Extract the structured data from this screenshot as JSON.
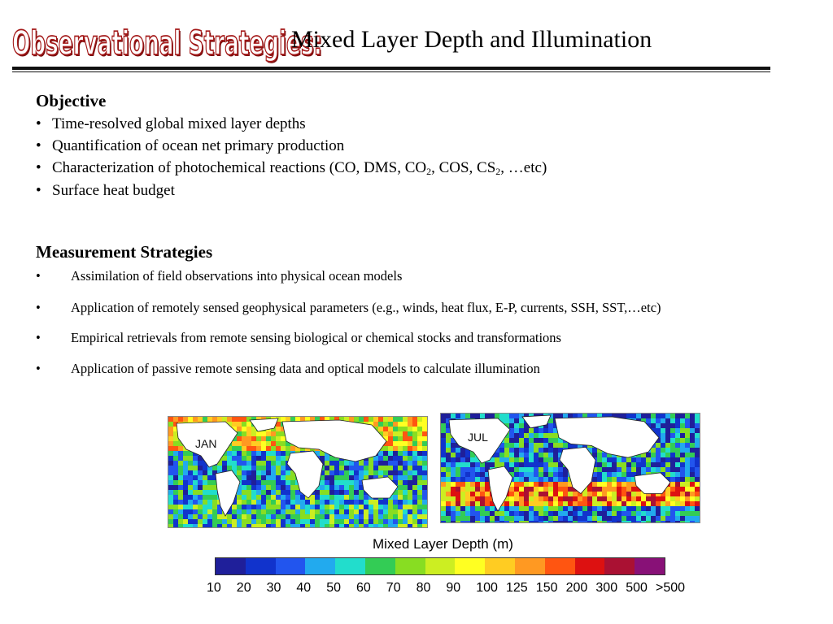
{
  "title": {
    "prefix": "Observational Strategies:",
    "main": "Mixed Layer Depth and Illumination"
  },
  "objective": {
    "heading": "Objective",
    "items": [
      {
        "parts": [
          "Time-resolved global mixed layer depths"
        ]
      },
      {
        "parts": [
          "Quantification of ocean net primary production"
        ]
      },
      {
        "parts": [
          "Characterization of photochemical reactions (CO, DMS, CO",
          "2",
          ", COS, CS",
          "2",
          ", …etc)"
        ]
      },
      {
        "parts": [
          "Surface heat budget"
        ]
      }
    ]
  },
  "measurement": {
    "heading": "Measurement Strategies",
    "items": [
      "Assimilation of field observations into physical ocean models",
      "Application of remotely sensed geophysical parameters (e.g., winds, heat flux, E-P, currents, SSH, SST,…etc)",
      "Empirical retrievals from remote sensing biological or chemical stocks and transformations",
      "Application of passive remote sensing data and optical models to calculate illumination"
    ]
  },
  "bullet_char": "•",
  "figure": {
    "maps": [
      {
        "label": "JAN"
      },
      {
        "label": "JUL"
      }
    ],
    "legend_title": "Mixed Layer Depth (m)",
    "colorbar": {
      "colors": [
        "#1f1f9a",
        "#1133cc",
        "#2255ee",
        "#22aaee",
        "#22ddcc",
        "#33cc55",
        "#88dd22",
        "#ccee22",
        "#ffff22",
        "#ffcc22",
        "#ff9922",
        "#ff5511",
        "#dd1111",
        "#aa1133",
        "#881177"
      ],
      "ticks": [
        "10",
        "20",
        "30",
        "40",
        "50",
        "60",
        "70",
        "80",
        "90",
        "100",
        "125",
        "150",
        "200",
        "300",
        "500",
        ">500"
      ]
    },
    "colors": {
      "ocean_low": "#1a2bb0",
      "ocean_mid": "#22bbaa",
      "ocean_high": "#ee3322",
      "land": "#ffffff"
    }
  }
}
